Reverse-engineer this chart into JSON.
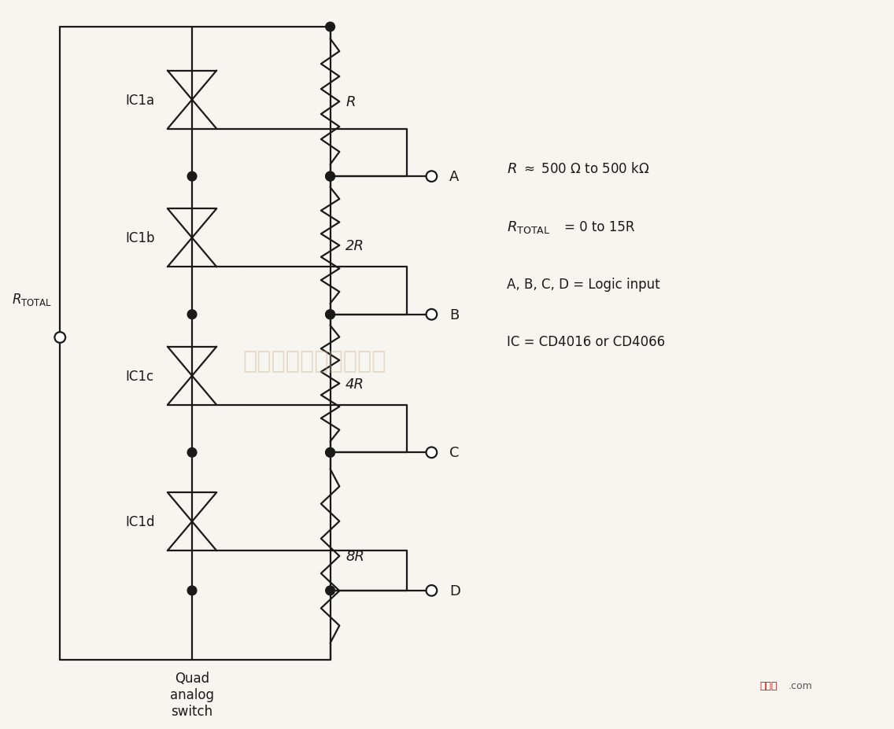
{
  "bg_color": "#f7f5f0",
  "line_color": "#1a1a1a",
  "line_width": 1.6,
  "switch_labels": [
    "IC1a",
    "IC1b",
    "IC1c",
    "IC1d"
  ],
  "resistor_labels": [
    "R",
    "2R",
    "4R",
    "8R"
  ],
  "output_labels": [
    "A",
    "B",
    "C",
    "D"
  ],
  "annotation_line1_italic": "R",
  "annotation_line1_rest": "≈ 500 Ω to 500 kΩ",
  "annotation_line2_italic": "R",
  "annotation_line2_sub": "TOTAL",
  "annotation_line2_rest": " = 0 to 15R",
  "annotation_line3": "A, B, C, D = Logic input",
  "annotation_line4": "IC = CD4016 or CD4066",
  "quad_label": "Quad\nanalog\nswitch",
  "watermark": "杭州将睿科技有限公司"
}
